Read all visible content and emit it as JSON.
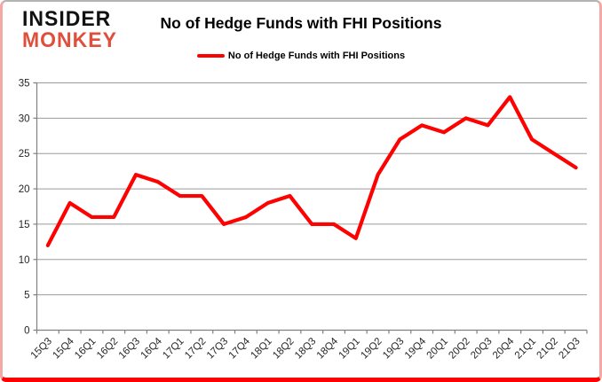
{
  "header": {
    "logo_line1": "INSIDER",
    "logo_line2": "MONKEY",
    "title": "No of Hedge Funds with FHI Positions"
  },
  "legend": {
    "label": "No of Hedge Funds with FHI Positions"
  },
  "colors": {
    "series_line": "#fe0101",
    "logo_accent": "#df4f3b",
    "logo_primary": "#111111",
    "gridline": "#9b9b9b",
    "axis_line": "#808080",
    "tick_label": "#262626",
    "frame_bottom": "#fe0000",
    "frame_sides": "#f2a9a4"
  },
  "chart_data": {
    "type": "line",
    "title": "No of Hedge Funds with FHI Positions",
    "categories": [
      "15Q3",
      "15Q4",
      "16Q1",
      "16Q2",
      "16Q3",
      "16Q4",
      "17Q1",
      "17Q2",
      "17Q3",
      "17Q4",
      "18Q1",
      "18Q2",
      "18Q3",
      "18Q4",
      "19Q1",
      "19Q2",
      "19Q3",
      "19Q4",
      "20Q1",
      "20Q2",
      "20Q3",
      "20Q4",
      "21Q1",
      "21Q2",
      "21Q3"
    ],
    "series": [
      {
        "name": "No of Hedge Funds with FHI Positions",
        "values": [
          12,
          18,
          16,
          16,
          22,
          21,
          19,
          19,
          15,
          16,
          18,
          19,
          15,
          15,
          13,
          22,
          27,
          29,
          28,
          30,
          29,
          33,
          27,
          25,
          23
        ]
      }
    ],
    "xlabel": "",
    "ylabel": "",
    "ylim": [
      0,
      35
    ],
    "ytick_step": 5,
    "yticks": [
      0,
      5,
      10,
      15,
      20,
      25,
      30,
      35
    ],
    "grid": true,
    "legend_position": "top-center",
    "x_label_rotation_deg": -45
  }
}
